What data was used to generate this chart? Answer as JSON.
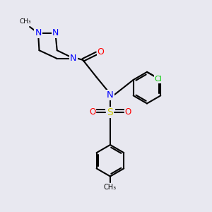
{
  "bg_color": "#e8e8f0",
  "bond_color": "#000000",
  "bond_lw": 1.5,
  "atom_colors": {
    "N": "#0000ff",
    "O": "#ff0000",
    "S": "#cccc00",
    "Cl": "#00cc00",
    "C": "#000000"
  },
  "font_size": 8.0,
  "fig_size": [
    3.0,
    3.0
  ],
  "dpi": 100
}
